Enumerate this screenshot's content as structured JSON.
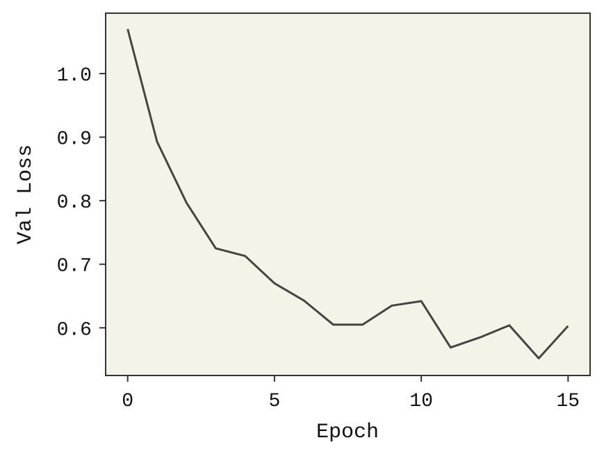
{
  "chart_data": {
    "type": "line",
    "title": "",
    "xlabel": "Epoch",
    "ylabel": "Val Loss",
    "xlim": [
      -0.75,
      15.75
    ],
    "ylim": [
      0.525,
      1.095
    ],
    "x_ticks": [
      0,
      5,
      10,
      15
    ],
    "x_tick_labels": [
      "0",
      "5",
      "10",
      "15"
    ],
    "y_ticks": [
      0.6,
      0.7,
      0.8,
      0.9,
      1.0
    ],
    "y_tick_labels": [
      "0.6",
      "0.7",
      "0.8",
      "0.9",
      "1.0"
    ],
    "grid": false,
    "colors": {
      "plot_background": "#f3f3e8",
      "line": "#444444",
      "frame": "#333333"
    },
    "series": [
      {
        "x": [
          0,
          1,
          2,
          3,
          4,
          5,
          6,
          7,
          8,
          9,
          10,
          11,
          12,
          13,
          14,
          15
        ],
        "values": [
          1.07,
          0.893,
          0.797,
          0.725,
          0.713,
          0.67,
          0.643,
          0.605,
          0.605,
          0.635,
          0.642,
          0.569,
          0.585,
          0.604,
          0.552,
          0.603
        ]
      }
    ]
  }
}
